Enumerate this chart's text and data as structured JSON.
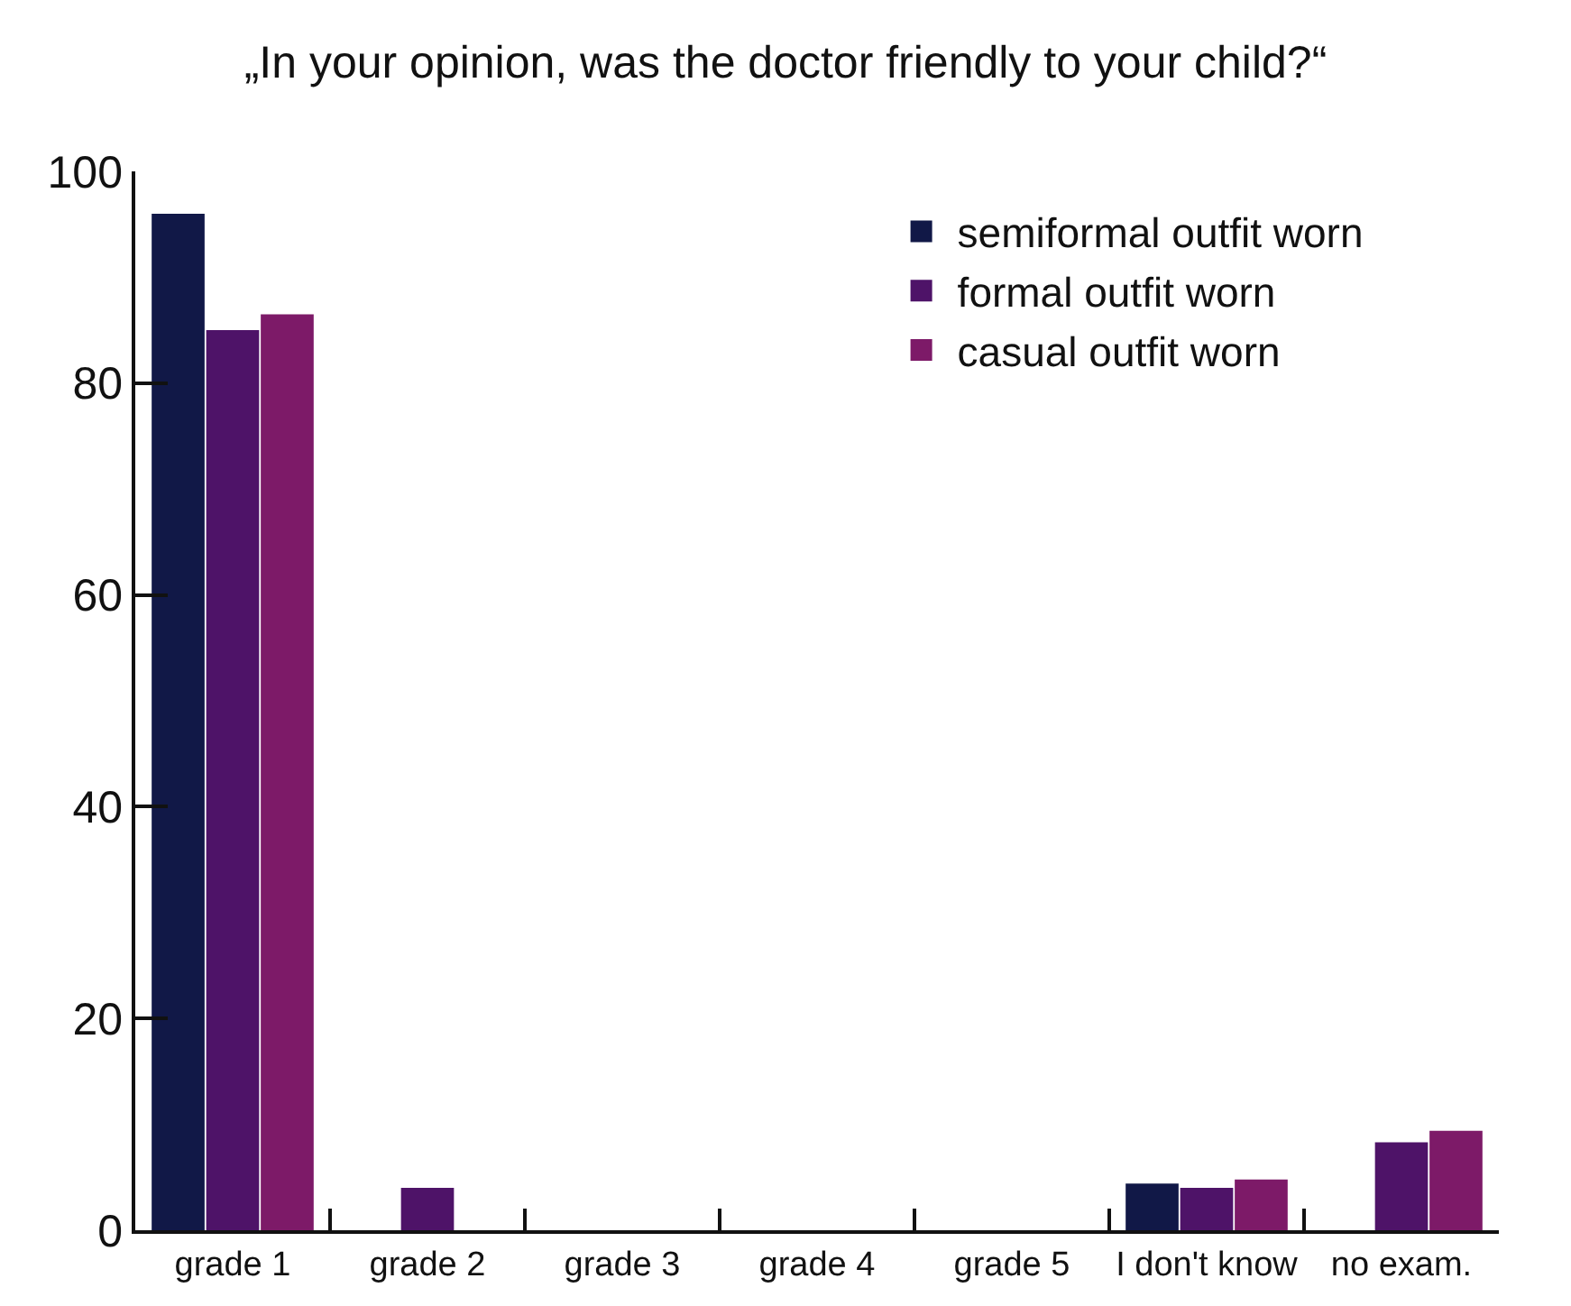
{
  "chart_data": {
    "type": "bar",
    "title": "„In your opinion, was the doctor friendly to your child?“",
    "categories": [
      "grade 1",
      "grade 2",
      "grade 3",
      "grade 4",
      "grade 5",
      "I don't know",
      "no exam."
    ],
    "series": [
      {
        "name": "semiformal outfit worn",
        "color": "#111847",
        "values": [
          96,
          0,
          0,
          0,
          0,
          4.4,
          0
        ]
      },
      {
        "name": "formal outfit worn",
        "color": "#4e1368",
        "values": [
          85,
          4,
          0,
          0,
          0,
          4,
          8.3
        ]
      },
      {
        "name": "casual outfit worn",
        "color": "#7d1a68",
        "values": [
          86.5,
          0,
          0,
          0,
          0,
          4.8,
          9.4
        ]
      }
    ],
    "ylim": [
      0,
      100
    ],
    "yticks": [
      0,
      20,
      40,
      60,
      80,
      100
    ],
    "grid": false,
    "legend": "top right"
  }
}
